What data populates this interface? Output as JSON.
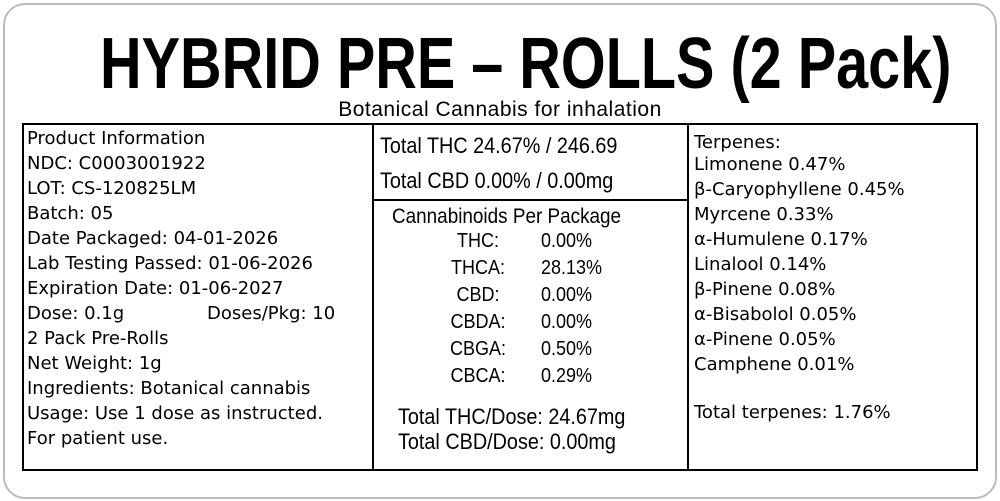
{
  "header": {
    "title": "HYBRID PRE – ROLLS (2 Pack)",
    "subtitle": "Botanical Cannabis for inhalation"
  },
  "product_info": {
    "lines": [
      "Product Information",
      "NDC: C0003001922",
      "LOT: CS-120825LM",
      "Batch: 05",
      "Date Packaged: 04-01-2026",
      "Lab Testing Passed: 01-06-2026",
      "Expiration Date: 01-06-2027"
    ],
    "dose": "Dose: 0.1g",
    "doses_per_pkg": "Doses/Pkg: 10",
    "more_lines": [
      "2 Pack Pre-Rolls",
      "Net Weight: 1g",
      "Ingredients: Botanical cannabis",
      "Usage: Use 1 dose as instructed.",
      "For patient use."
    ]
  },
  "potency": {
    "total_thc": "Total THC 24.67% / 246.69",
    "total_cbd": "Total CBD 0.00% / 0.00mg",
    "cannabinoids_title": "Cannabinoids Per Package",
    "cannabinoids": [
      [
        "THC:",
        "0.00%"
      ],
      [
        "THCA:",
        "28.13%"
      ],
      [
        "CBD:",
        "0.00%"
      ],
      [
        "CBDA:",
        "0.00%"
      ],
      [
        "CBGA:",
        "0.50%"
      ],
      [
        "CBCA:",
        "0.29%"
      ]
    ],
    "thc_per_dose": "Total THC/Dose: 24.67mg",
    "cbd_per_dose": "Total CBD/Dose: 0.00mg"
  },
  "terpenes": {
    "title": "Terpenes:",
    "items": [
      "Limonene 0.47%",
      "β-Caryophyllene 0.45%",
      "Myrcene 0.33%",
      "α-Humulene 0.17%",
      "Linalool 0.14%",
      "β-Pinene 0.08%",
      "α-Bisabolol 0.05%",
      "α-Pinene 0.05%",
      "Camphene 0.01%"
    ],
    "total": "Total terpenes: 1.76%"
  }
}
